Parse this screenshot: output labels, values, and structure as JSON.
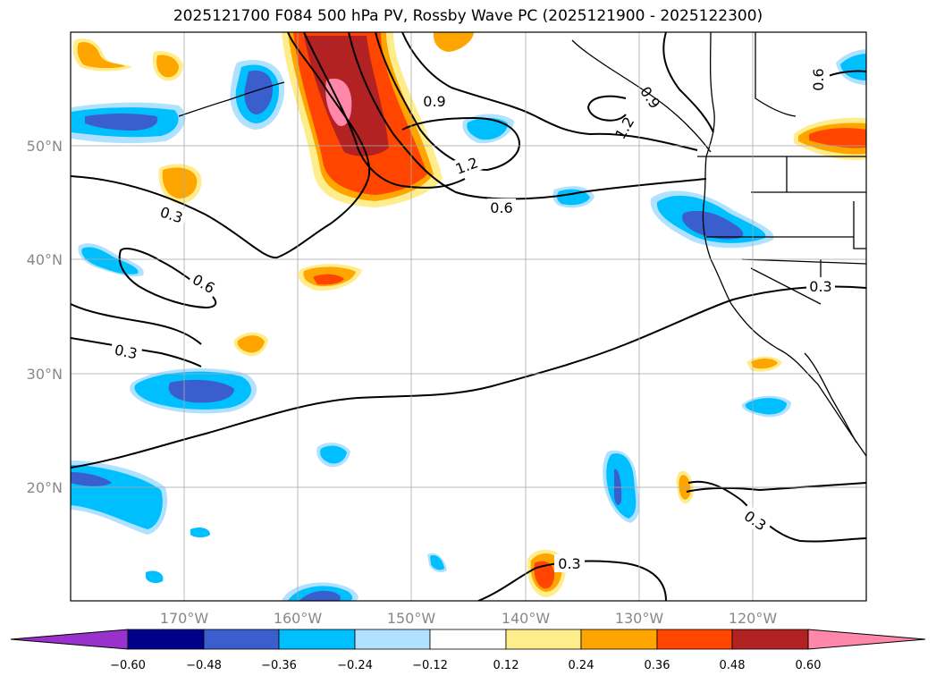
{
  "title": "2025121700 F084 500 hPa PV, Rossby Wave PC (2025121900 - 2025122300)",
  "colors": {
    "neg_extend": "#9932cc",
    "neg_060": "#00008b",
    "neg_048": "#3a5fcd",
    "neg_036": "#00bfff",
    "neg_024": "#b0e2ff",
    "neutral": "#ffffff",
    "pos_012": "#ffec8b",
    "pos_024": "#ffa500",
    "pos_036": "#ff4500",
    "pos_048": "#b22222",
    "pos_060": "#ff88aa"
  },
  "map": {
    "lon_range": [
      -180,
      -110
    ],
    "lat_range": [
      10,
      60
    ],
    "lon_ticks": [
      "170°W",
      "160°W",
      "150°W",
      "140°W",
      "130°W",
      "120°W"
    ],
    "lat_ticks": [
      "50°N",
      "40°N",
      "30°N",
      "20°N"
    ]
  },
  "colorbar": {
    "ticks": [
      "−0.60",
      "−0.48",
      "−0.36",
      "−0.24",
      "−0.12",
      "0.12",
      "0.24",
      "0.36",
      "0.48",
      "0.60"
    ]
  },
  "contour_labels": [
    "0.9",
    "1.2",
    "0.6",
    "0.3",
    "0.6",
    "0.3",
    "0.3",
    "0.3",
    "0.3",
    "0.6",
    "1.2",
    "0.9"
  ]
}
